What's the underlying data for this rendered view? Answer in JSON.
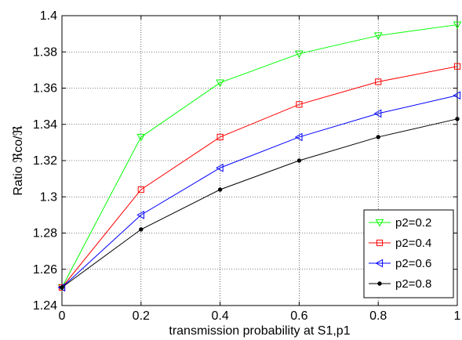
{
  "chart_data": {
    "type": "line",
    "xlabel": "transmission probability at S1,p1",
    "ylabel": "Ratio ℜco/ℜ",
    "xlim": [
      0,
      1
    ],
    "ylim": [
      1.24,
      1.4
    ],
    "xticks": [
      0,
      0.2,
      0.4,
      0.6,
      0.8,
      1
    ],
    "xtick_labels": [
      "0",
      "0.2",
      "0.4",
      "0.6",
      "0.8",
      "1"
    ],
    "yticks": [
      1.24,
      1.26,
      1.28,
      1.3,
      1.32,
      1.34,
      1.36,
      1.38,
      1.4
    ],
    "ytick_labels": [
      "1.24",
      "1.26",
      "1.28",
      "1.3",
      "1.32",
      "1.34",
      "1.36",
      "1.38",
      "1.4"
    ],
    "grid": true,
    "legend_position": "bottom-right",
    "x": [
      0,
      0.2,
      0.4,
      0.6,
      0.8,
      1
    ],
    "series": [
      {
        "name": "p2=0.2",
        "color": "#00ff00",
        "marker": "triangle-down",
        "values": [
          1.25,
          1.333,
          1.363,
          1.379,
          1.389,
          1.395
        ]
      },
      {
        "name": "p2=0.4",
        "color": "#ff0000",
        "marker": "square",
        "values": [
          1.25,
          1.304,
          1.333,
          1.351,
          1.3635,
          1.372
        ]
      },
      {
        "name": "p2=0.6",
        "color": "#0000ff",
        "marker": "triangle-left",
        "values": [
          1.25,
          1.29,
          1.316,
          1.333,
          1.346,
          1.356
        ]
      },
      {
        "name": "p2=0.8",
        "color": "#000000",
        "marker": "dot",
        "values": [
          1.25,
          1.282,
          1.304,
          1.32,
          1.333,
          1.343
        ]
      }
    ]
  }
}
